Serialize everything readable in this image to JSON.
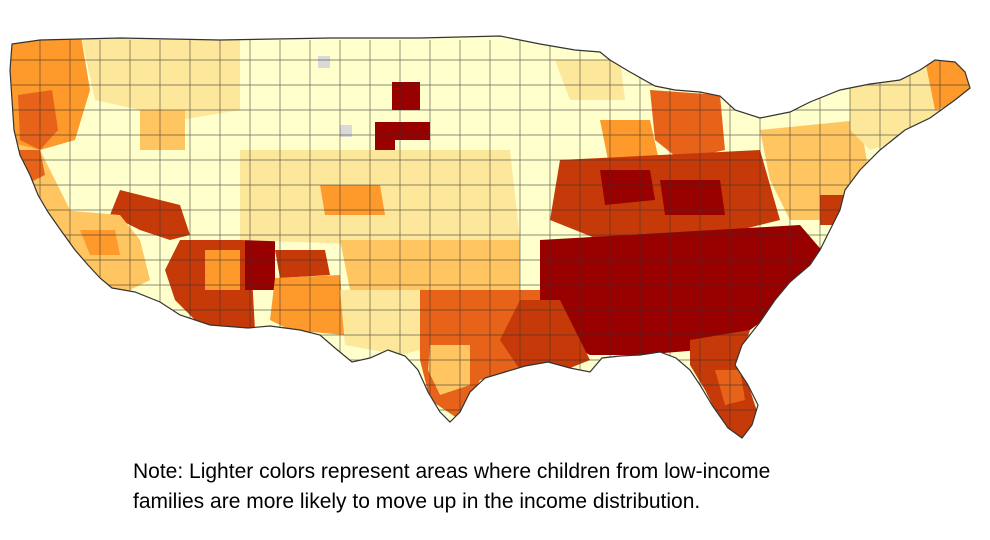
{
  "note": {
    "line1": "Note: Lighter colors represent areas where children from low-income",
    "line2": "families are more likely to move up in the income distribution."
  },
  "palette": {
    "lightest": "#ffffcc",
    "light": "#fde79b",
    "medium_light": "#fec561",
    "medium": "#fd9a2b",
    "medium_dark": "#e8631a",
    "dark": "#c63a0a",
    "darkest": "#990000",
    "no_data": "#d9d9d9",
    "border": "#333333"
  },
  "regions": [
    {
      "id": "pacific-northwest",
      "level": "medium"
    },
    {
      "id": "california-coast",
      "level": "medium_dark"
    },
    {
      "id": "northern-rockies",
      "level": "light"
    },
    {
      "id": "great-basin",
      "level": "lightest"
    },
    {
      "id": "nevada-south",
      "level": "dark"
    },
    {
      "id": "southern-california",
      "level": "medium_light"
    },
    {
      "id": "arizona",
      "level": "dark"
    },
    {
      "id": "navajo-area",
      "level": "darkest"
    },
    {
      "id": "new-mexico",
      "level": "medium"
    },
    {
      "id": "northern-plains",
      "level": "lightest"
    },
    {
      "id": "pine-ridge-area",
      "level": "darkest"
    },
    {
      "id": "central-plains",
      "level": "light"
    },
    {
      "id": "oklahoma",
      "level": "medium_light"
    },
    {
      "id": "texas-panhandle",
      "level": "light"
    },
    {
      "id": "texas-south",
      "level": "medium_dark"
    },
    {
      "id": "upper-midwest",
      "level": "lightest"
    },
    {
      "id": "great-lakes",
      "level": "medium"
    },
    {
      "id": "michigan",
      "level": "medium_dark"
    },
    {
      "id": "ohio-valley",
      "level": "dark"
    },
    {
      "id": "deep-south",
      "level": "darkest"
    },
    {
      "id": "gulf-coast",
      "level": "dark"
    },
    {
      "id": "florida",
      "level": "dark"
    },
    {
      "id": "mid-atlantic",
      "level": "medium_light"
    },
    {
      "id": "new-england",
      "level": "light"
    },
    {
      "id": "maine",
      "level": "medium"
    }
  ]
}
